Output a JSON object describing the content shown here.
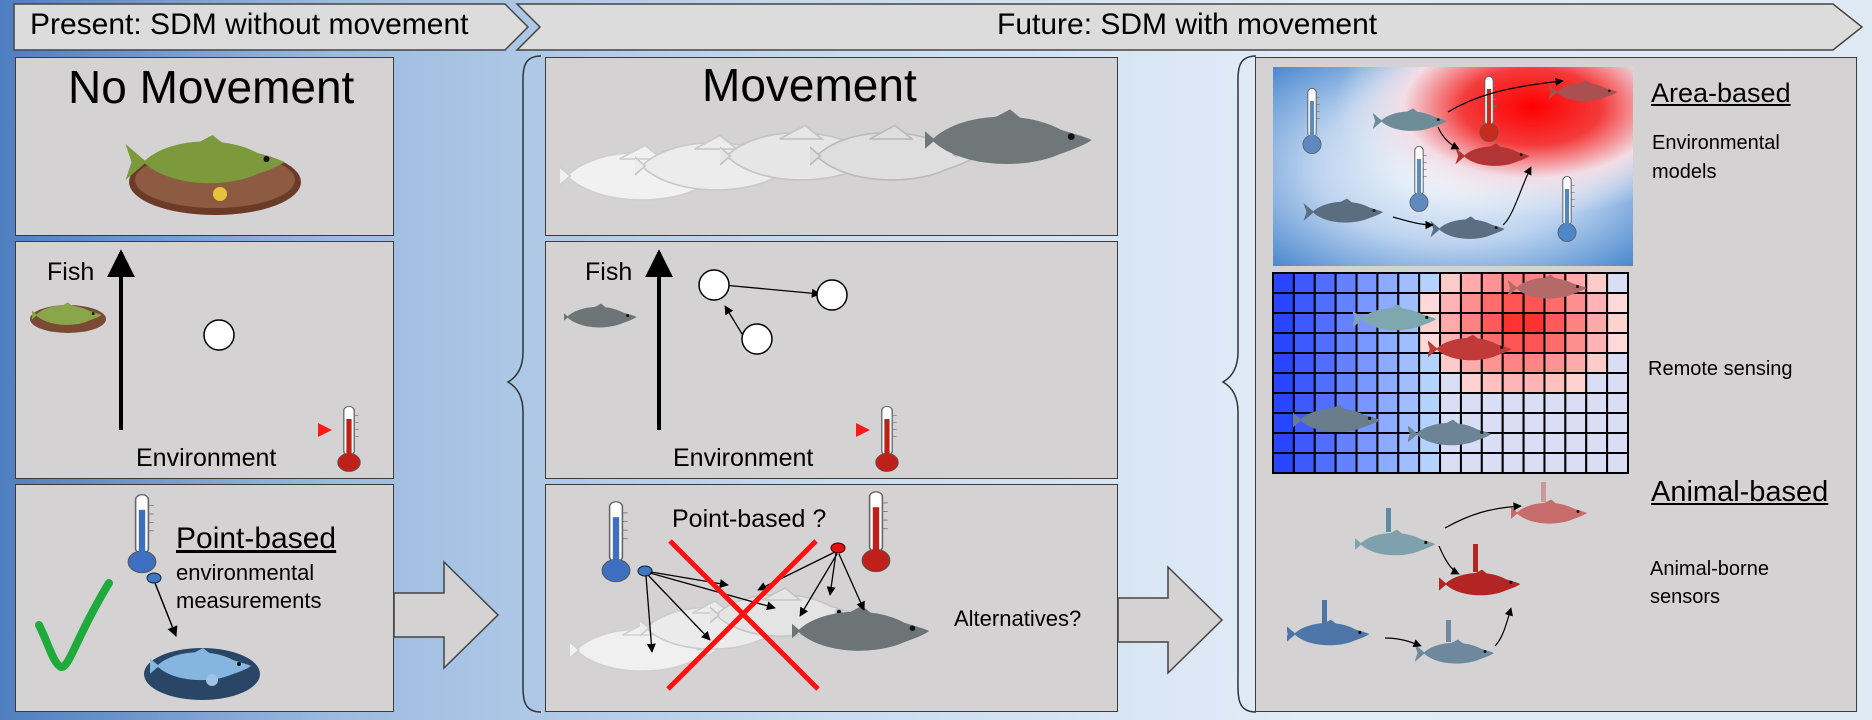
{
  "header": {
    "present_label": "Present: SDM without movement",
    "future_label": "Future: SDM with movement"
  },
  "left": {
    "title": "No Movement",
    "axis_y_label": "Fish",
    "axis_x_label": "Environment",
    "point_title": "Point-based",
    "point_sub1": "environmental",
    "point_sub2": "measurements"
  },
  "middle": {
    "title": "Movement",
    "axis_y_label": "Fish",
    "axis_x_label": "Environment",
    "question": "Point-based ?",
    "alternatives": "Alternatives?"
  },
  "right": {
    "area_title": "Area-based",
    "area_sub1": "Environmental",
    "area_sub2": "models",
    "remote": "Remote sensing",
    "animal_title": "Animal-based",
    "animal_sub1": "Animal-borne",
    "animal_sub2": "sensors"
  },
  "colors": {
    "panel": "#d4d2d3",
    "cold_blue": "#3f78c4",
    "hot_red": "#e01010",
    "check_green": "#1faa3c",
    "cross_red": "#ff1010"
  }
}
